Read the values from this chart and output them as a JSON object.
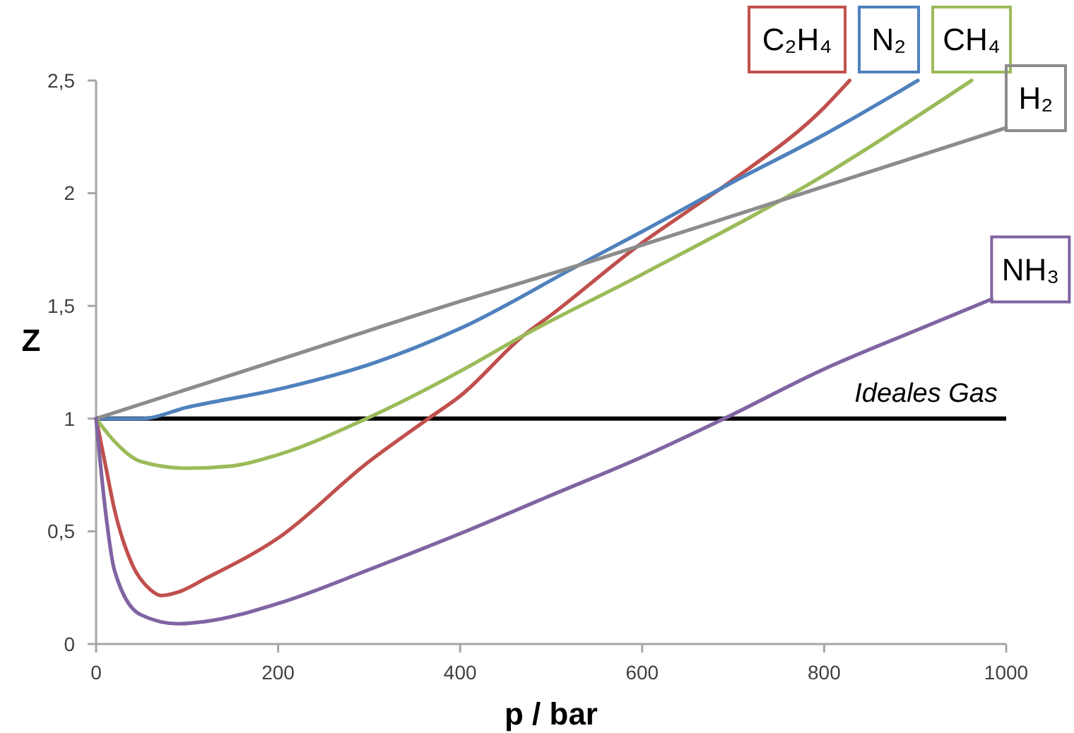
{
  "chart_data": {
    "type": "line",
    "xlabel": "p / bar",
    "ylabel": "Z",
    "xlim": [
      0,
      1000
    ],
    "xticks": [
      0,
      200,
      400,
      600,
      800,
      1000
    ],
    "ylim": [
      0,
      2.5
    ],
    "yticks": [
      0,
      {
        "value": 0.5,
        "label": "0,5"
      },
      1,
      {
        "value": 1.5,
        "label": "1,5"
      },
      2,
      {
        "value": 2.5,
        "label": "2,5"
      }
    ],
    "grid": false,
    "legend": "top right",
    "marker": "none",
    "line_style": "solid",
    "ref_lines": [
      {
        "axis": "y",
        "value": 1,
        "label": "Ideales Gas",
        "color": "#000000"
      }
    ],
    "series": [
      {
        "name": "C₂H₄",
        "color": "#c0504d",
        "x": [
          0,
          10,
          20,
          40,
          60,
          72,
          90,
          120,
          200,
          300,
          365,
          400,
          470,
          500,
          600,
          650,
          700,
          800,
          828
        ],
        "values": [
          1,
          0.8,
          0.6,
          0.35,
          0.24,
          0.215,
          0.23,
          0.29,
          0.47,
          0.81,
          1.0,
          1.1,
          1.37,
          1.46,
          1.78,
          1.92,
          2.06,
          2.38,
          2.5
        ]
      },
      {
        "name": "N₂",
        "color": "#4f81bd",
        "x": [
          0,
          50,
          100,
          200,
          300,
          400,
          530,
          600,
          700,
          800,
          903
        ],
        "values": [
          1,
          1.0,
          1.05,
          1.13,
          1.24,
          1.4,
          1.68,
          1.83,
          2.05,
          2.26,
          2.5
        ]
      },
      {
        "name": "CH₄",
        "color": "#9bbb59",
        "x": [
          0,
          20,
          49,
          100,
          150,
          200,
          297,
          400,
          470,
          600,
          800,
          962
        ],
        "values": [
          1,
          0.9,
          0.81,
          0.78,
          0.79,
          0.84,
          1.0,
          1.21,
          1.37,
          1.64,
          2.08,
          2.5
        ]
      },
      {
        "name": "H₂",
        "color": "#8c8c8c",
        "x": [
          0,
          200,
          400,
          530,
          600,
          800,
          1000
        ],
        "values": [
          1,
          1.26,
          1.52,
          1.68,
          1.77,
          2.03,
          2.29
        ]
      },
      {
        "name": "NH₃",
        "color": "#8064a2",
        "x": [
          0,
          10,
          20,
          49,
          90,
          120,
          200,
          300,
          400,
          500,
          600,
          690,
          800,
          900,
          984
        ],
        "values": [
          1,
          0.6,
          0.33,
          0.13,
          0.09,
          0.1,
          0.18,
          0.33,
          0.49,
          0.66,
          0.83,
          1.0,
          1.22,
          1.39,
          1.53
        ]
      }
    ]
  }
}
